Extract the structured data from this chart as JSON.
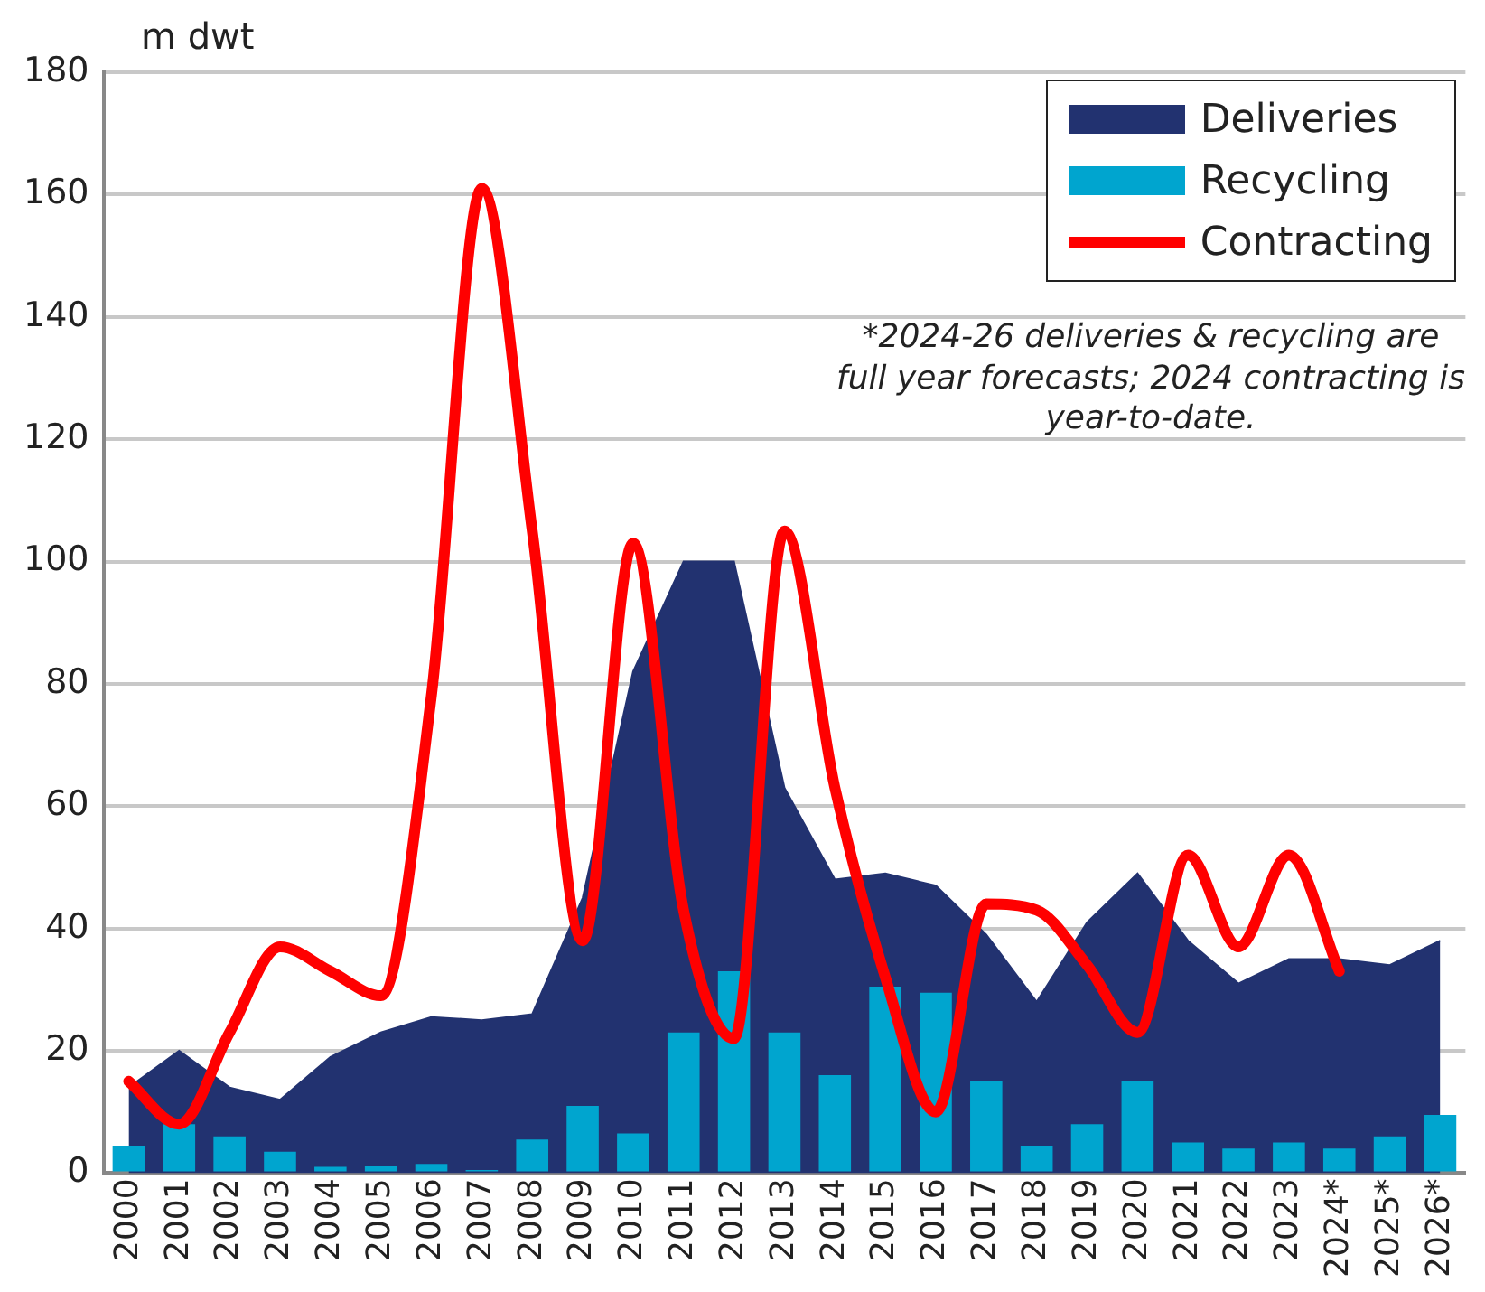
{
  "chart_data": {
    "type": "bar",
    "ylabel": "m dwt",
    "categories": [
      "2000",
      "2001",
      "2002",
      "2003",
      "2004",
      "2005",
      "2006",
      "2007",
      "2008",
      "2009",
      "2010",
      "2011",
      "2012",
      "2013",
      "2014",
      "2015",
      "2016",
      "2017",
      "2018",
      "2019",
      "2020",
      "2021",
      "2022",
      "2023",
      "2024*",
      "2025*",
      "2026*"
    ],
    "series": [
      {
        "name": "Deliveries",
        "type": "area",
        "color": "#223270",
        "values": [
          14,
          20,
          14,
          12,
          19,
          23,
          25.5,
          25,
          26,
          45,
          82,
          100,
          100,
          63,
          48,
          49,
          47,
          39,
          28,
          41,
          49,
          38,
          31,
          35,
          35,
          34,
          38
        ]
      },
      {
        "name": "Recycling",
        "color": "#00a5cf",
        "values": [
          4.5,
          8,
          6,
          3.5,
          1,
          1.2,
          1.5,
          0.5,
          5.5,
          11,
          6.5,
          23,
          33,
          23,
          16,
          30.5,
          29.5,
          15,
          4.5,
          8,
          15,
          5,
          4,
          5,
          4,
          6,
          9.5
        ]
      },
      {
        "name": "Contracting",
        "type": "line",
        "color": "#ff0000",
        "values": [
          15,
          8,
          23,
          37,
          33,
          29,
          78,
          161,
          105,
          38,
          103,
          43,
          22,
          105,
          63,
          32,
          10,
          44,
          43,
          34,
          23,
          52,
          37,
          52,
          33,
          null,
          null
        ]
      }
    ],
    "ylim": [
      0,
      180
    ],
    "yticks": [
      0,
      20,
      40,
      60,
      80,
      100,
      120,
      140,
      160,
      180
    ],
    "grid": "y",
    "legend": "top right",
    "marker": "none",
    "annotations": [
      "*2024-26 deliveries & recycling are full year forecasts; 2024 contracting is year-to-date."
    ]
  }
}
